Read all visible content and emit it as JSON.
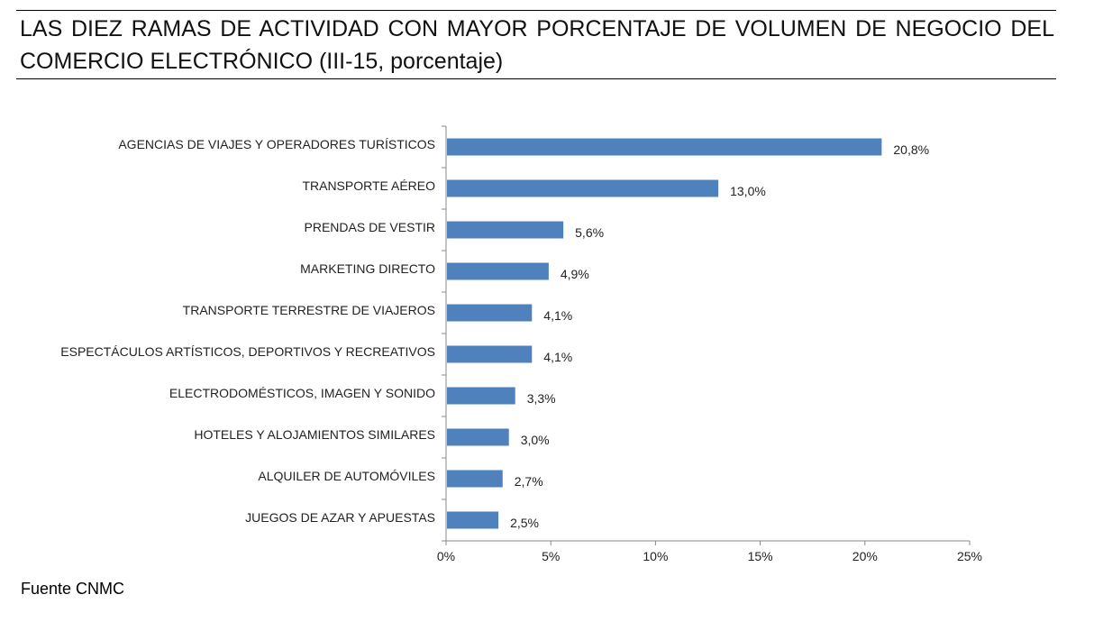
{
  "chart_data": {
    "type": "bar",
    "orientation": "horizontal",
    "title": "LAS DIEZ RAMAS DE ACTIVIDAD CON MAYOR PORCENTAJE DE VOLUMEN DE NEGOCIO DEL COMERCIO ELECTRÓNICO (III-15, porcentaje)",
    "xlabel": "",
    "ylabel": "",
    "xlim": [
      0,
      25
    ],
    "x_ticks": [
      "0%",
      "5%",
      "10%",
      "15%",
      "20%",
      "25%"
    ],
    "x_tick_values": [
      0,
      5,
      10,
      15,
      20,
      25
    ],
    "grid": false,
    "legend": "none",
    "bar_color": "#4F81BD",
    "categories": [
      "AGENCIAS DE VIAJES Y OPERADORES TURÍSTICOS",
      "TRANSPORTE AÉREO",
      "PRENDAS DE VESTIR",
      "MARKETING DIRECTO",
      "TRANSPORTE TERRESTRE DE VIAJEROS",
      "ESPECTÁCULOS ARTÍSTICOS, DEPORTIVOS Y RECREATIVOS",
      "ELECTRODOMÉSTICOS,  IMAGEN Y SONIDO",
      "HOTELES  Y ALOJAMIENTOS SIMILARES",
      "ALQUILER DE AUTOMÓVILES",
      "JUEGOS DE AZAR Y APUESTAS"
    ],
    "values": [
      20.8,
      13.0,
      5.6,
      4.9,
      4.1,
      4.1,
      3.3,
      3.0,
      2.7,
      2.5
    ],
    "data_labels": [
      "20,8%",
      "13,0%",
      "5,6%",
      "4,9%",
      "4,1%",
      "4,1%",
      "3,3%",
      "3,0%",
      "2,7%",
      "2,5%"
    ]
  },
  "header": {
    "title": "LAS DIEZ RAMAS DE ACTIVIDAD CON MAYOR PORCENTAJE DE VOLUMEN DE NEGOCIO DEL COMERCIO ELECTRÓNICO (III-15, porcentaje)"
  },
  "footer": {
    "source": "Fuente CNMC"
  }
}
